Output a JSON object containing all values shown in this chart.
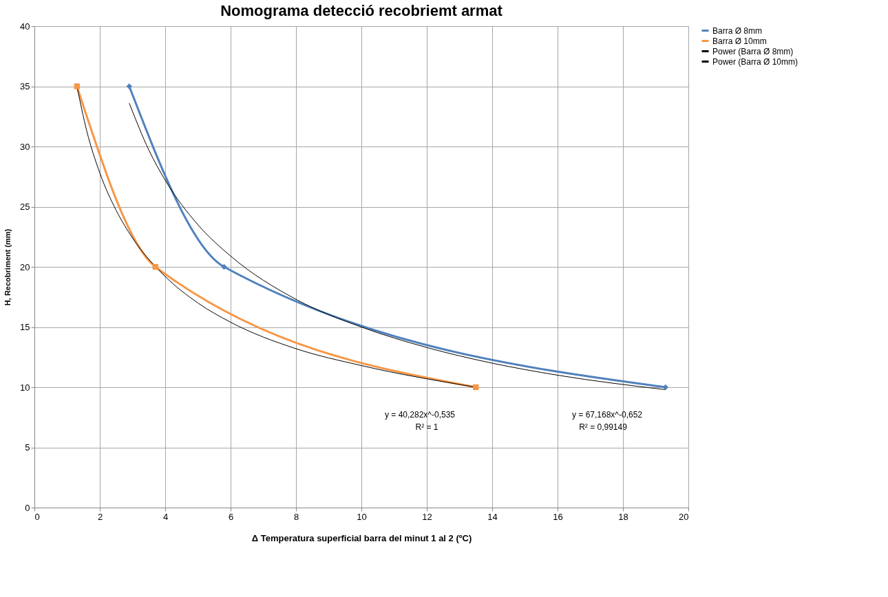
{
  "chart_data": {
    "type": "line",
    "title": "Nomograma detecció recobriemt armat",
    "xlabel": "Δ Temperatura superficial barra del minut 1 al 2 (ºC)",
    "ylabel": "H, Recobriment (mm)",
    "xlim": [
      0,
      20
    ],
    "xticks": [
      0,
      2,
      4,
      6,
      8,
      10,
      12,
      14,
      16,
      18,
      20
    ],
    "ylim": [
      0,
      40
    ],
    "yticks": [
      0,
      5,
      10,
      15,
      20,
      25,
      30,
      35,
      40
    ],
    "grid": true,
    "legend": "right",
    "series": [
      {
        "name": "Barra Ø 8mm",
        "color": "#4f81bd",
        "marker": "diamond",
        "x": [
          2.9,
          5.8,
          19.3
        ],
        "values": [
          35,
          20,
          10
        ]
      },
      {
        "name": "Barra Ø 10mm",
        "color": "#f79646",
        "marker": "square",
        "x": [
          1.3,
          3.7,
          13.5
        ],
        "values": [
          35,
          20,
          10
        ]
      },
      {
        "name": "Power (Barra Ø 8mm)",
        "color": "#000000",
        "marker": "none",
        "x": [
          2.9,
          3.5,
          4,
          5,
          6,
          8,
          10,
          12,
          14,
          16,
          19.3
        ],
        "values": [
          33.6,
          29.7,
          27.2,
          23.5,
          20.9,
          17.3,
          15.0,
          13.3,
          12.0,
          11.0,
          9.8
        ]
      },
      {
        "name": "Power (Barra Ø 10mm)",
        "color": "#000000",
        "marker": "none",
        "x": [
          1.3,
          1.6,
          2,
          2.5,
          3,
          4,
          5,
          6,
          8,
          10,
          13.5
        ],
        "values": [
          35.0,
          31.3,
          27.8,
          24.7,
          22.4,
          19.2,
          17.0,
          15.4,
          13.2,
          11.8,
          10.0
        ]
      }
    ],
    "annotations": [
      "y = 40,282x^-0,535",
      "R² = 1",
      "y = 67,168x^-0,652",
      "R² = 0,99149"
    ]
  }
}
